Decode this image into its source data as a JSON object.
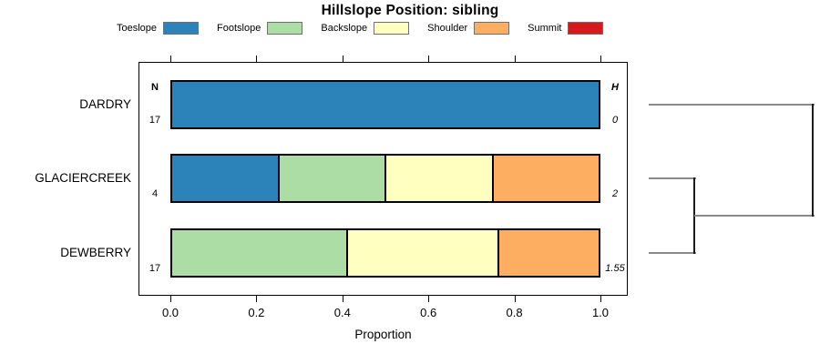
{
  "chart_data": {
    "type": "bar",
    "orientation": "horizontal-stacked",
    "title": "Hillslope Position: sibling",
    "xlabel": "Proportion",
    "xlim": [
      0,
      1
    ],
    "x_ticks": [
      "0.0",
      "0.2",
      "0.4",
      "0.6",
      "0.8",
      "1.0"
    ],
    "grid": false,
    "legend_position": "top",
    "count_header": "N",
    "diversity_header": "H",
    "legend": [
      {
        "label": "Toeslope",
        "color": "#2B83BA"
      },
      {
        "label": "Footslope",
        "color": "#ABDDA4"
      },
      {
        "label": "Backslope",
        "color": "#FFFFBF"
      },
      {
        "label": "Shoulder",
        "color": "#FDAE61"
      },
      {
        "label": "Summit",
        "color": "#D7191C"
      }
    ],
    "rows": [
      {
        "label": "DARDRY",
        "n": 17,
        "shannon_h": "0",
        "segments": [
          {
            "category": "Toeslope",
            "proportion": 1.0
          }
        ]
      },
      {
        "label": "GLACIERCREEK",
        "n": 4,
        "shannon_h": "2",
        "segments": [
          {
            "category": "Toeslope",
            "proportion": 0.25
          },
          {
            "category": "Footslope",
            "proportion": 0.25
          },
          {
            "category": "Backslope",
            "proportion": 0.25
          },
          {
            "category": "Shoulder",
            "proportion": 0.25
          }
        ]
      },
      {
        "label": "DEWBERRY",
        "n": 17,
        "shannon_h": "1.55",
        "segments": [
          {
            "category": "Footslope",
            "proportion": 0.412
          },
          {
            "category": "Backslope",
            "proportion": 0.353
          },
          {
            "category": "Shoulder",
            "proportion": 0.235
          }
        ]
      }
    ],
    "dendrogram": {
      "leaf_order": [
        "DARDRY",
        "GLACIERCREEK",
        "DEWBERRY"
      ],
      "merges": [
        {
          "a": "GLACIERCREEK",
          "b": "DEWBERRY",
          "x_frac": 0.28
        },
        {
          "a": "DARDRY",
          "b": "merge-1",
          "x_frac": 1.0
        }
      ]
    }
  }
}
